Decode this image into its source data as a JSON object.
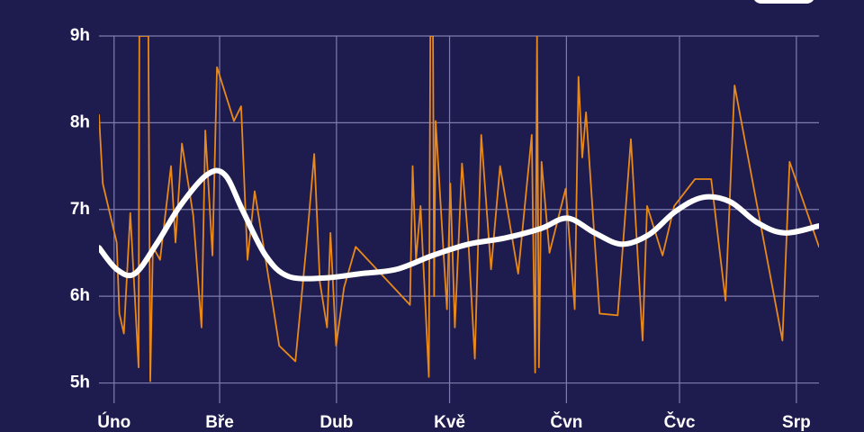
{
  "chart_data": {
    "type": "line",
    "xlim": [
      27,
      218
    ],
    "xticks": [
      {
        "value": 31,
        "label": "Úno"
      },
      {
        "value": 59,
        "label": "Bře"
      },
      {
        "value": 90,
        "label": "Dub"
      },
      {
        "value": 120,
        "label": "Kvě"
      },
      {
        "value": 151,
        "label": "Čvn"
      },
      {
        "value": 181,
        "label": "Čvc"
      },
      {
        "value": 212,
        "label": "Srp"
      }
    ],
    "ylim": [
      4.85,
      9
    ],
    "yticks": [
      {
        "value": 5,
        "label": "5h"
      },
      {
        "value": 6,
        "label": "6h"
      },
      {
        "value": 7,
        "label": "7h"
      },
      {
        "value": 8,
        "label": "8h"
      },
      {
        "value": 9,
        "label": "9h"
      }
    ],
    "grid": true,
    "series": [
      {
        "color": "#e8891a",
        "smooth": false,
        "x": [
          27,
          28,
          31.7,
          32.4,
          33.6,
          35.3,
          36.5,
          37.5,
          37.7,
          40.1,
          40.6,
          41.3,
          43.2,
          46.1,
          47.3,
          49,
          52,
          54.2,
          55.2,
          57.1,
          58.3,
          62.8,
          64.7,
          66.4,
          68.3,
          72.4,
          74.8,
          79.1,
          82,
          84.1,
          85.6,
          87.5,
          88.4,
          89.9,
          92,
          95.1,
          109.5,
          110.2,
          111.1,
          112.3,
          114.5,
          114.9,
          115.6,
          115.9,
          116.3,
          119.3,
          120.2,
          121.4,
          123.3,
          125,
          126.7,
          128.4,
          131,
          133.4,
          138.2,
          141.8,
          142.7,
          143.2,
          143.7,
          144.4,
          146.5,
          150.8,
          153.2,
          154.2,
          155.2,
          156.2,
          159.8,
          164.6,
          168.1,
          171.2,
          172.4,
          176.5,
          179.6,
          185.1,
          189.4,
          193.2,
          195.6,
          208.3,
          210.2,
          218
        ],
        "values": [
          8.09,
          7.3,
          6.62,
          5.8,
          5.57,
          6.96,
          6.0,
          5.18,
          9,
          9,
          5.02,
          6.57,
          6.42,
          7.5,
          6.62,
          7.76,
          6.93,
          5.64,
          7.91,
          6.47,
          8.64,
          8.02,
          8.19,
          6.42,
          7.21,
          6.1,
          5.43,
          5.25,
          6.57,
          7.64,
          6.16,
          5.64,
          6.73,
          5.43,
          6.1,
          6.57,
          5.9,
          7.5,
          6.42,
          7.04,
          5.07,
          9,
          9,
          6.0,
          8.02,
          5.85,
          7.3,
          5.64,
          7.53,
          6.62,
          5.28,
          7.86,
          6.31,
          7.5,
          6.26,
          7.86,
          5.12,
          9,
          5.18,
          7.55,
          6.5,
          7.24,
          5.85,
          8.53,
          7.6,
          8.12,
          5.8,
          5.78,
          7.81,
          5.49,
          7.04,
          6.47,
          7.04,
          7.35,
          7.35,
          5.95,
          8.43,
          5.49,
          7.55,
          6.57
        ]
      },
      {
        "color": "#ffffff",
        "smooth": true,
        "x": [
          27,
          31.7,
          36.5,
          42.5,
          48.5,
          55.6,
          60.4,
          65.2,
          71.2,
          77.2,
          86.7,
          96.3,
          105.9,
          115.5,
          125,
          134.6,
          144.2,
          151.3,
          158.5,
          165.7,
          172.9,
          180,
          187.2,
          194.4,
          201.6,
          208.8,
          218
        ],
        "values": [
          6.56,
          6.31,
          6.26,
          6.62,
          7.04,
          7.4,
          7.4,
          6.98,
          6.47,
          6.23,
          6.21,
          6.26,
          6.31,
          6.47,
          6.6,
          6.67,
          6.78,
          6.9,
          6.73,
          6.6,
          6.71,
          6.98,
          7.14,
          7.09,
          6.85,
          6.73,
          6.81
        ]
      }
    ]
  }
}
